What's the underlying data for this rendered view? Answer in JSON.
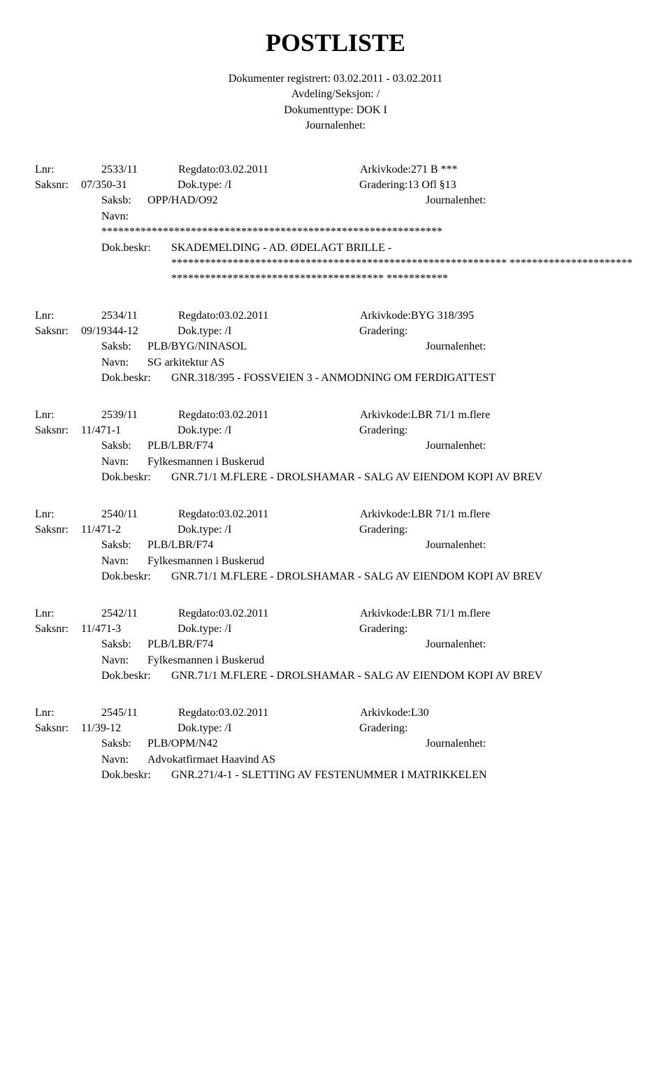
{
  "header": {
    "title": "POSTLISTE",
    "line1": "Dokumenter registrert: 03.02.2011 - 03.02.2011",
    "line2": "Avdeling/Seksjon: /",
    "line3": "Dokumenttype: DOK I",
    "line4": "Journalenhet:"
  },
  "entries": [
    {
      "lnr": "2533/11",
      "regdato": "Regdato:03.02.2011",
      "arkivkode": "Arkivkode:271 B ***",
      "saksnr": "07/350-31",
      "doktype": "Dok.type: /I",
      "gradering": "Gradering:13 Ofl §13",
      "saksb": "OPP/HAD/O92",
      "journalenhet": "Journalenhet:",
      "navn": "",
      "stars_navn": "*************************************************************",
      "beskr_label": "Dok.beskr:",
      "beskr": "SKADEMELDING - AD. ØDELAGT BRILLE -",
      "stars_beskr": "************************************************************ ************************************************************ ***********",
      "type": "starred"
    },
    {
      "lnr": "2534/11",
      "regdato": "Regdato:03.02.2011",
      "arkivkode": "Arkivkode:BYG 318/395",
      "saksnr": "09/19344-12",
      "doktype": "Dok.type: /I",
      "gradering": "Gradering:",
      "saksb": "PLB/BYG/NINASOL",
      "journalenhet": "Journalenhet:",
      "navn": "SG arkitektur AS",
      "beskr_label": "Dok.beskr:",
      "beskr": "GNR.318/395 - FOSSVEIEN 3 - ANMODNING OM FERDIGATTEST",
      "type": "normal"
    },
    {
      "lnr": "2539/11",
      "regdato": "Regdato:03.02.2011",
      "arkivkode": "Arkivkode:LBR 71/1 m.flere",
      "saksnr": "11/471-1",
      "doktype": "Dok.type: /I",
      "gradering": "Gradering:",
      "saksb": "PLB/LBR/F74",
      "journalenhet": "Journalenhet:",
      "navn": "Fylkesmannen i Buskerud",
      "beskr_label": "Dok.beskr:",
      "beskr": "GNR.71/1 M.FLERE - DROLSHAMAR - SALG AV EIENDOM KOPI AV BREV",
      "type": "normal"
    },
    {
      "lnr": "2540/11",
      "regdato": "Regdato:03.02.2011",
      "arkivkode": "Arkivkode:LBR 71/1 m.flere",
      "saksnr": "11/471-2",
      "doktype": "Dok.type: /I",
      "gradering": "Gradering:",
      "saksb": "PLB/LBR/F74",
      "journalenhet": "Journalenhet:",
      "navn": "Fylkesmannen i Buskerud",
      "beskr_label": "Dok.beskr:",
      "beskr": "GNR.71/1 M.FLERE - DROLSHAMAR - SALG AV EIENDOM KOPI AV BREV",
      "type": "normal"
    },
    {
      "lnr": "2542/11",
      "regdato": "Regdato:03.02.2011",
      "arkivkode": "Arkivkode:LBR 71/1 m.flere",
      "saksnr": "11/471-3",
      "doktype": "Dok.type: /I",
      "gradering": "Gradering:",
      "saksb": "PLB/LBR/F74",
      "journalenhet": "Journalenhet:",
      "navn": "Fylkesmannen i Buskerud",
      "beskr_label": "Dok.beskr:",
      "beskr": "GNR.71/1 M.FLERE - DROLSHAMAR - SALG AV EIENDOM KOPI AV BREV",
      "type": "normal"
    },
    {
      "lnr": "2545/11",
      "regdato": "Regdato:03.02.2011",
      "arkivkode": "Arkivkode:L30",
      "saksnr": "11/39-12",
      "doktype": "Dok.type: /I",
      "gradering": "Gradering:",
      "saksb": "PLB/OPM/N42",
      "journalenhet": "Journalenhet:",
      "navn": "Advokatfirmaet Haavind AS",
      "beskr_label": "Dok.beskr:",
      "beskr": "GNR.271/4-1 -  SLETTING AV FESTENUMMER I MATRIKKELEN",
      "type": "normal"
    }
  ],
  "labels": {
    "lnr": "Lnr:",
    "saksnr": "Saksnr:",
    "saksb": "Saksb:",
    "navn": "Navn:",
    "beskr": "Dok.beskr:"
  }
}
